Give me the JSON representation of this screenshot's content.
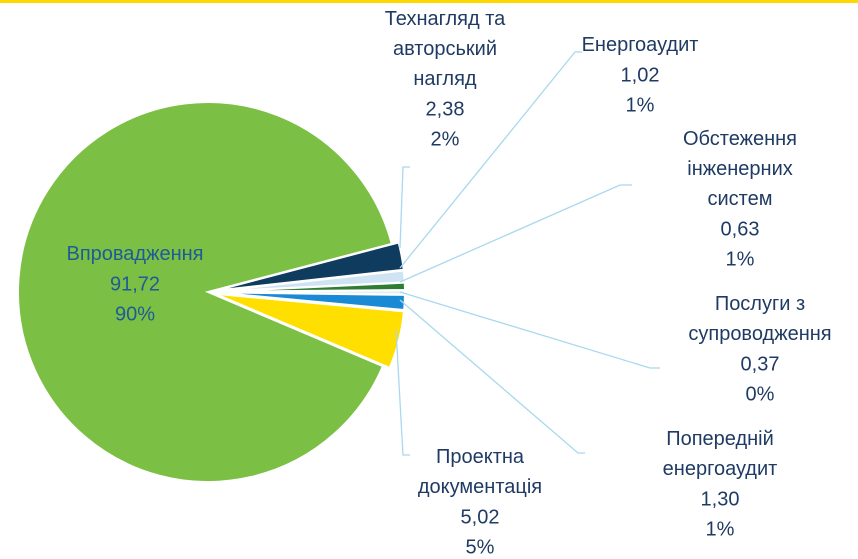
{
  "chart_data": {
    "type": "pie",
    "categories": [
      "Технагляд та\nавторський\nнагляд",
      "Енергоаудит",
      "Обстеження\nінженерних\nсистем",
      "Послуги з\nсупроводження",
      "Попередній\nенергоаудит",
      "Проектна\nдокументація",
      "Впровадження"
    ],
    "values": [
      2.38,
      1.02,
      0.63,
      0.37,
      1.3,
      5.02,
      91.72
    ],
    "value_labels": [
      "2,38",
      "1,02",
      "0,63",
      "0,37",
      "1,30",
      "5,02",
      "91,72"
    ],
    "percent_labels": [
      "2%",
      "1%",
      "1%",
      "0%",
      "1%",
      "5%",
      "90%"
    ],
    "colors": [
      "#0e3b5e",
      "#cfe4f2",
      "#2f7d32",
      "#e3eef7",
      "#1a8ad4",
      "#ffdf00",
      "#7bbf44"
    ]
  }
}
